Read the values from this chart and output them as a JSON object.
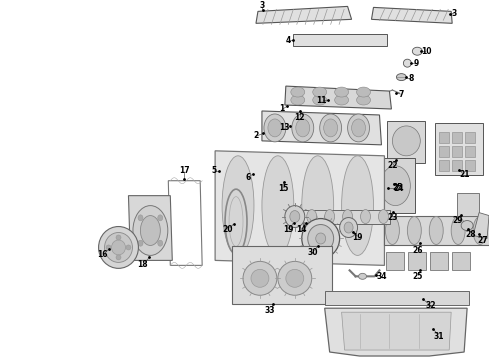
{
  "bg_color": "#ffffff",
  "line_color": "#444444",
  "fig_width": 4.9,
  "fig_height": 3.6,
  "dpi": 100,
  "label_fontsize": 5.5,
  "part_color": "#e8e8e8",
  "part_edge": "#555555"
}
